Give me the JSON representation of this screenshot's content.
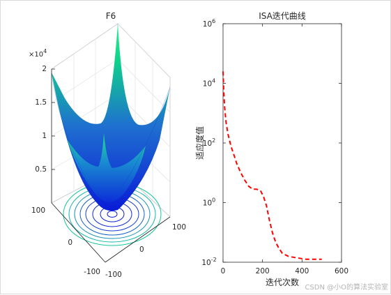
{
  "figure": {
    "watermark": "CSDN @小O的算法实验室"
  },
  "chart_data": [
    {
      "type": "surface",
      "title": "F6",
      "exponent_label": "×10",
      "exponent_power": "4",
      "z_ticks": [
        "2",
        "1.5",
        "1",
        "0.5"
      ],
      "x_ticks": [
        "100",
        "0",
        "-100"
      ],
      "y_ticks": [
        "100",
        "0",
        "-100"
      ],
      "contour_projection": true,
      "colormap": [
        "#0a1cd6",
        "#1f6fd0",
        "#0fd18c",
        "#2af08a"
      ]
    },
    {
      "type": "line",
      "title": "ISA迭代曲线",
      "xlabel": "迭代次数",
      "ylabel": "适应度值",
      "x_ticks": [
        "0",
        "200",
        "400",
        "600"
      ],
      "y_ticks": [
        {
          "base": "10",
          "exp": "6"
        },
        {
          "base": "10",
          "exp": "4"
        },
        {
          "base": "10",
          "exp": "2"
        },
        {
          "base": "10",
          "exp": "0"
        },
        {
          "base": "10",
          "exp": "-2"
        }
      ],
      "xlim": [
        0,
        600
      ],
      "ylim_log10": [
        -2,
        6
      ],
      "yscale": "log",
      "series": [
        {
          "line_style": "dashed",
          "color": "#ff0000",
          "x": [
            0,
            3,
            8,
            15,
            25,
            40,
            55,
            70,
            90,
            110,
            130,
            150,
            170,
            190,
            205,
            220,
            235,
            250,
            265,
            280,
            300,
            330,
            370,
            420,
            460,
            500
          ],
          "y_log10": [
            4.4,
            3.8,
            3.2,
            2.7,
            2.3,
            1.9,
            1.6,
            1.3,
            1.0,
            0.75,
            0.55,
            0.45,
            0.45,
            0.4,
            0.2,
            -0.1,
            -0.6,
            -1.0,
            -1.3,
            -1.5,
            -1.7,
            -1.8,
            -1.85,
            -1.9,
            -1.9,
            -1.9
          ]
        }
      ]
    }
  ]
}
